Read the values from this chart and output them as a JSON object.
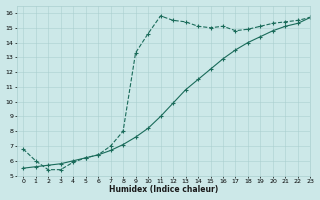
{
  "xlabel": "Humidex (Indice chaleur)",
  "bg_color": "#cce8e8",
  "line_color": "#1a6b5a",
  "line1_x": [
    0,
    1,
    2,
    3,
    4,
    5,
    6,
    7,
    8,
    9,
    10,
    11,
    12,
    13,
    14,
    15,
    16,
    17,
    18,
    19,
    20,
    21,
    22,
    23
  ],
  "line1_y": [
    6.8,
    6.0,
    5.4,
    5.4,
    5.9,
    6.2,
    6.4,
    7.0,
    8.0,
    13.3,
    14.6,
    15.8,
    15.5,
    15.4,
    15.1,
    15.0,
    15.1,
    14.8,
    14.9,
    15.1,
    15.3,
    15.4,
    15.5,
    15.7
  ],
  "line2_x": [
    0,
    1,
    2,
    3,
    4,
    5,
    6,
    7,
    8,
    9,
    10,
    11,
    12,
    13,
    14,
    15,
    16,
    17,
    18,
    19,
    20,
    21,
    22,
    23
  ],
  "line2_y": [
    5.5,
    5.6,
    5.7,
    5.8,
    6.0,
    6.2,
    6.4,
    6.7,
    7.1,
    7.6,
    8.2,
    9.0,
    9.9,
    10.8,
    11.5,
    12.2,
    12.9,
    13.5,
    14.0,
    14.4,
    14.8,
    15.1,
    15.3,
    15.7
  ],
  "xlim": [
    -0.5,
    23
  ],
  "ylim": [
    5,
    16.5
  ],
  "yticks": [
    5,
    6,
    7,
    8,
    9,
    10,
    11,
    12,
    13,
    14,
    15,
    16
  ],
  "xticks": [
    0,
    1,
    2,
    3,
    4,
    5,
    6,
    7,
    8,
    9,
    10,
    11,
    12,
    13,
    14,
    15,
    16,
    17,
    18,
    19,
    20,
    21,
    22,
    23
  ]
}
